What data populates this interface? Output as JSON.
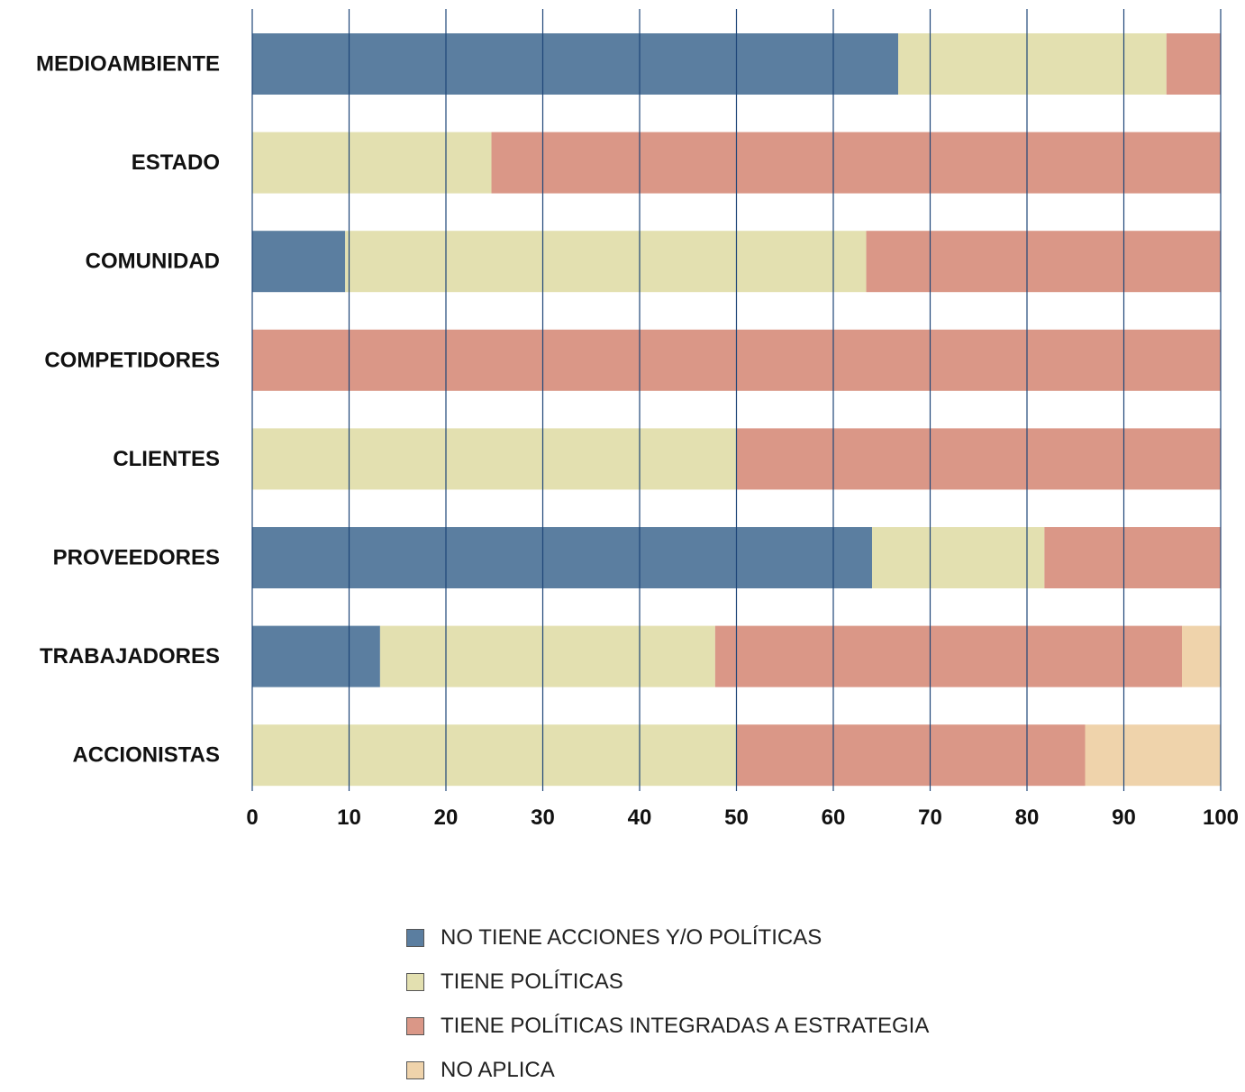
{
  "chart_data": {
    "type": "bar",
    "orientation": "horizontal",
    "stacked": true,
    "categories": [
      "MEDIOAMBIENTE",
      "ESTADO",
      "COMUNIDAD",
      "COMPETIDORES",
      "CLIENTES",
      "PROVEEDORES",
      "TRABAJADORES",
      "ACCIONISTAS"
    ],
    "series": [
      {
        "name": "NO TIENE ACCIONES Y/O POLÍTICAS",
        "color": "#5b7ea0",
        "values": [
          66.7,
          0,
          9.6,
          0,
          0,
          64,
          13.2,
          0
        ]
      },
      {
        "name": "TIENE POLÍTICAS",
        "color": "#e3e0b0",
        "values": [
          27.7,
          24.7,
          53.8,
          0,
          50,
          17.8,
          34.6,
          50
        ]
      },
      {
        "name": "TIENE POLÍTICAS INTEGRADAS A ESTRATEGIA",
        "color": "#da9787",
        "values": [
          5.6,
          75.3,
          36.6,
          100,
          50,
          18.2,
          48.2,
          36
        ]
      },
      {
        "name": "NO APLICA",
        "color": "#efd3ab",
        "values": [
          0,
          0,
          0,
          0,
          0,
          0,
          4,
          14
        ]
      }
    ],
    "xlim": [
      0,
      100
    ],
    "xticks": [
      "0",
      "10",
      "20",
      "30",
      "40",
      "50",
      "60",
      "70",
      "80",
      "90",
      "100"
    ],
    "grid": "vertical",
    "grid_color": "#1f4678",
    "legend_position": "bottom-center"
  }
}
